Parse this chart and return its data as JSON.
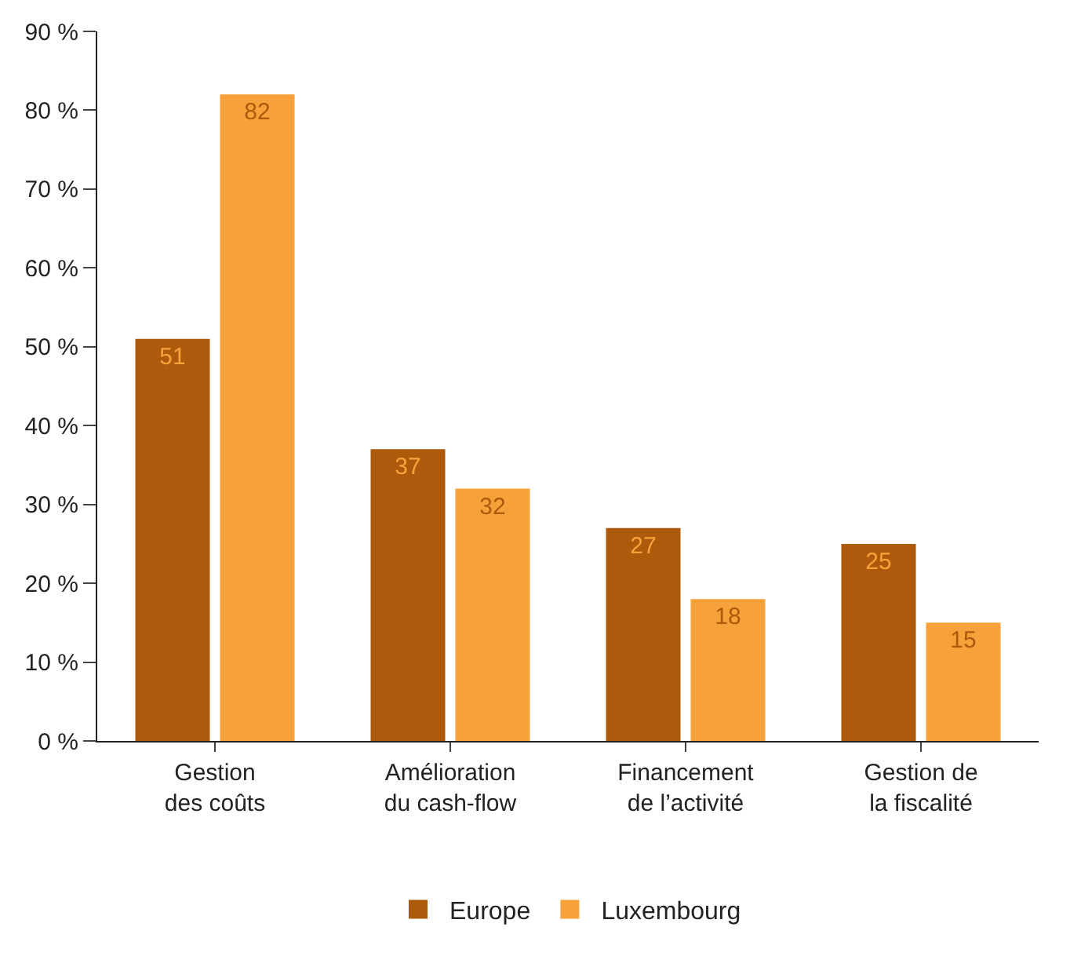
{
  "chart_data": {
    "type": "bar",
    "categories": [
      "Gestion\ndes coûts",
      "Amélioration\ndu cash-flow",
      "Financement\nde l’activité",
      "Gestion de\nla fiscalité"
    ],
    "series": [
      {
        "name": "Europe",
        "color": "#ae5a0c",
        "values": [
          51,
          37,
          27,
          25
        ]
      },
      {
        "name": "Luxembourg",
        "color": "#f7a13a",
        "values": [
          82,
          32,
          18,
          15
        ]
      }
    ],
    "ylim": [
      0,
      90
    ],
    "yticks": [
      {
        "value": 0,
        "label": "0 %"
      },
      {
        "value": 10,
        "label": "10 %"
      },
      {
        "value": 20,
        "label": "20 %"
      },
      {
        "value": 30,
        "label": "30 %"
      },
      {
        "value": 40,
        "label": "40 %"
      },
      {
        "value": 50,
        "label": "50 %"
      },
      {
        "value": 60,
        "label": "60 %"
      },
      {
        "value": 70,
        "label": "70 %"
      },
      {
        "value": 80,
        "label": "80 %"
      },
      {
        "value": 90,
        "label": "90 %"
      }
    ],
    "legend": "bottom",
    "data_labels": true
  }
}
